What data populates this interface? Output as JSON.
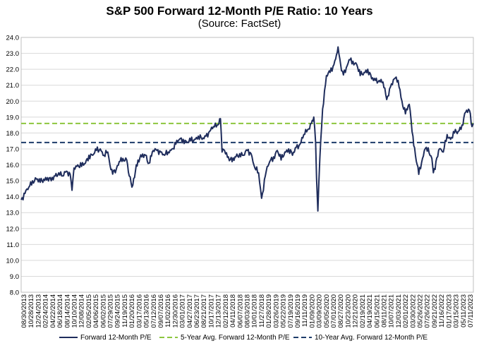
{
  "chart_data": {
    "type": "line",
    "title": "S&P 500 Forward 12-Month P/E Ratio: 10 Years",
    "subtitle": "(Source: FactSet)",
    "ylim": [
      8.0,
      24.0
    ],
    "yticks": [
      "8.0",
      "9.0",
      "10.0",
      "11.0",
      "12.0",
      "13.0",
      "14.0",
      "15.0",
      "16.0",
      "17.0",
      "18.0",
      "19.0",
      "20.0",
      "21.0",
      "22.0",
      "23.0",
      "24.0"
    ],
    "xticks": [
      "08/30/2013",
      "10/28/2013",
      "12/24/2013",
      "02/24/2014",
      "04/22/2014",
      "06/18/2014",
      "08/14/2014",
      "10/10/2014",
      "12/08/2014",
      "02/05/2015",
      "04/06/2015",
      "06/02/2015",
      "07/29/2015",
      "09/24/2015",
      "11/19/2015",
      "01/20/2016",
      "03/17/2016",
      "05/13/2016",
      "07/12/2016",
      "09/07/2016",
      "11/02/2016",
      "12/30/2016",
      "03/01/2017",
      "04/27/2017",
      "06/23/2017",
      "08/21/2017",
      "10/17/2017",
      "12/13/2017",
      "02/12/2018",
      "04/11/2018",
      "06/07/2018",
      "08/03/2018",
      "10/01/2018",
      "11/27/2018",
      "01/28/2019",
      "03/26/2019",
      "05/22/2019",
      "07/19/2019",
      "09/16/2019",
      "11/11/2019",
      "01/09/2020",
      "03/09/2020",
      "05/05/2020",
      "07/01/2020",
      "08/27/2020",
      "10/23/2020",
      "12/21/2020",
      "02/19/2021",
      "04/19/2021",
      "06/15/2021",
      "08/11/2021",
      "10/07/2021",
      "12/03/2021",
      "02/01/2022",
      "03/30/2022",
      "05/26/2022",
      "07/26/2022",
      "09/21/2022",
      "11/16/2022",
      "01/17/2023",
      "03/15/2023",
      "05/11/2023",
      "07/11/2023"
    ],
    "series": [
      {
        "name": "Forward 12-Month P/E",
        "color": "#1f2d5c",
        "x": [
          "2013-08-30",
          "2013-09-30",
          "2013-10-31",
          "2013-11-30",
          "2013-12-31",
          "2014-01-31",
          "2014-02-28",
          "2014-03-31",
          "2014-04-30",
          "2014-05-31",
          "2014-06-30",
          "2014-07-31",
          "2014-08-31",
          "2014-09-30",
          "2014-10-15",
          "2014-10-31",
          "2014-11-30",
          "2014-12-31",
          "2015-01-31",
          "2015-02-28",
          "2015-03-31",
          "2015-04-30",
          "2015-05-31",
          "2015-06-30",
          "2015-07-31",
          "2015-08-25",
          "2015-09-30",
          "2015-10-31",
          "2015-11-30",
          "2015-12-31",
          "2016-01-20",
          "2016-02-11",
          "2016-03-31",
          "2016-04-30",
          "2016-05-31",
          "2016-06-27",
          "2016-07-31",
          "2016-08-31",
          "2016-09-30",
          "2016-10-31",
          "2016-11-30",
          "2016-12-31",
          "2017-01-31",
          "2017-02-28",
          "2017-03-31",
          "2017-04-30",
          "2017-05-31",
          "2017-06-30",
          "2017-07-31",
          "2017-08-31",
          "2017-09-30",
          "2017-10-31",
          "2017-11-30",
          "2017-12-31",
          "2018-01-26",
          "2018-02-08",
          "2018-02-28",
          "2018-03-31",
          "2018-04-30",
          "2018-05-31",
          "2018-06-30",
          "2018-07-31",
          "2018-08-31",
          "2018-09-30",
          "2018-10-31",
          "2018-11-30",
          "2018-12-24",
          "2019-01-31",
          "2019-02-28",
          "2019-03-31",
          "2019-04-30",
          "2019-05-31",
          "2019-06-30",
          "2019-07-31",
          "2019-08-31",
          "2019-09-30",
          "2019-10-31",
          "2019-11-30",
          "2019-12-31",
          "2020-01-31",
          "2020-02-19",
          "2020-03-05",
          "2020-03-12",
          "2020-03-23",
          "2020-04-08",
          "2020-04-30",
          "2020-05-31",
          "2020-06-30",
          "2020-07-31",
          "2020-08-20",
          "2020-09-02",
          "2020-09-30",
          "2020-10-31",
          "2020-11-30",
          "2020-12-31",
          "2021-01-31",
          "2021-02-28",
          "2021-03-31",
          "2021-04-30",
          "2021-05-31",
          "2021-06-30",
          "2021-07-31",
          "2021-08-31",
          "2021-09-30",
          "2021-10-31",
          "2021-11-30",
          "2021-12-31",
          "2022-01-31",
          "2022-02-28",
          "2022-03-31",
          "2022-04-30",
          "2022-05-20",
          "2022-06-16",
          "2022-07-31",
          "2022-08-16",
          "2022-09-30",
          "2022-10-12",
          "2022-11-30",
          "2022-12-31",
          "2023-01-31",
          "2023-02-28",
          "2023-03-31",
          "2023-04-30",
          "2023-05-31",
          "2023-06-30",
          "2023-07-31",
          "2023-08-20",
          "2023-08-31"
        ],
        "y": [
          13.8,
          14.2,
          14.6,
          15.0,
          15.1,
          14.9,
          15.1,
          15.2,
          15.0,
          15.3,
          15.5,
          15.3,
          15.6,
          15.4,
          14.4,
          15.8,
          16.0,
          15.9,
          16.1,
          16.6,
          16.6,
          16.9,
          17.0,
          16.6,
          16.8,
          15.7,
          15.5,
          16.2,
          16.4,
          16.3,
          15.3,
          14.6,
          16.3,
          16.5,
          16.6,
          16.1,
          16.9,
          16.9,
          16.8,
          16.6,
          16.8,
          17.0,
          17.3,
          17.6,
          17.6,
          17.4,
          17.5,
          17.6,
          17.8,
          17.6,
          17.8,
          18.1,
          18.4,
          18.5,
          18.9,
          16.8,
          16.9,
          16.5,
          16.2,
          16.5,
          16.7,
          16.6,
          16.9,
          16.7,
          15.8,
          15.5,
          13.9,
          15.6,
          16.2,
          16.5,
          16.9,
          16.3,
          16.8,
          17.0,
          16.6,
          17.1,
          17.3,
          17.9,
          18.2,
          18.6,
          19.0,
          17.4,
          15.2,
          13.1,
          16.4,
          19.5,
          21.6,
          21.8,
          22.3,
          22.9,
          23.4,
          21.9,
          21.8,
          22.6,
          22.5,
          22.3,
          21.6,
          21.8,
          22.0,
          21.4,
          21.3,
          21.3,
          21.2,
          20.1,
          20.9,
          21.4,
          21.3,
          20.0,
          19.2,
          19.8,
          17.8,
          16.6,
          15.4,
          16.9,
          17.1,
          16.4,
          15.5,
          17.0,
          16.8,
          17.9,
          17.6,
          18.0,
          18.1,
          18.5,
          19.3,
          19.4,
          18.4,
          18.6
        ]
      },
      {
        "name": "5-Year Avg. Forward 12-Month P/E",
        "color": "#8dc63f",
        "value": 18.6
      },
      {
        "name": "10-Year Avg. Forward 12-Month P/E",
        "color": "#1f3d6b",
        "value": 17.4
      }
    ],
    "grid": "horizontal",
    "legend": "bottom"
  }
}
